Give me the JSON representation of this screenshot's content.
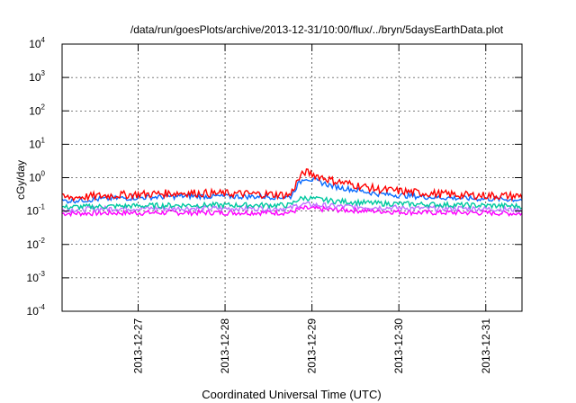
{
  "chart_data": {
    "type": "line",
    "title": "/data/run/goesPlots/archive/2013-12-31/10:00/flux/../bryn/5daysEarthData.plot",
    "xlabel": "Coordinated Universal Time (UTC)",
    "ylabel": "cGy/day",
    "yscale": "log",
    "ylim": [
      0.0001,
      10000
    ],
    "xlim": [
      "2013-12-26T03:00",
      "2013-12-31T10:00"
    ],
    "y_ticks": [
      {
        "base": "10",
        "exp": "-4",
        "value": 0.0001
      },
      {
        "base": "10",
        "exp": "-3",
        "value": 0.001
      },
      {
        "base": "10",
        "exp": "-2",
        "value": 0.01
      },
      {
        "base": "10",
        "exp": "-1",
        "value": 0.1
      },
      {
        "base": "10",
        "exp": "0",
        "value": 1
      },
      {
        "base": "10",
        "exp": "1",
        "value": 10
      },
      {
        "base": "10",
        "exp": "2",
        "value": 100
      },
      {
        "base": "10",
        "exp": "3",
        "value": 1000
      },
      {
        "base": "10",
        "exp": "4",
        "value": 10000
      }
    ],
    "x_ticks": [
      {
        "label": "2013-12-27",
        "value": "2013-12-27T00:00"
      },
      {
        "label": "2013-12-28",
        "value": "2013-12-28T00:00"
      },
      {
        "label": "2013-12-29",
        "value": "2013-12-29T00:00"
      },
      {
        "label": "2013-12-30",
        "value": "2013-12-30T00:00"
      },
      {
        "label": "2013-12-31",
        "value": "2013-12-31T00:00"
      }
    ],
    "grid": true,
    "x": [
      "2013-12-26T03:00",
      "2013-12-26T18:00",
      "2013-12-27T12:00",
      "2013-12-28T12:00",
      "2013-12-28T18:00",
      "2013-12-28T20:00",
      "2013-12-28T22:00",
      "2013-12-29T06:00",
      "2013-12-29T18:00",
      "2013-12-30T06:00",
      "2013-12-30T18:00",
      "2013-12-31T10:00"
    ],
    "series": [
      {
        "color": "#ff0000",
        "values": [
          0.25,
          0.3,
          0.35,
          0.32,
          0.3,
          0.8,
          1.5,
          0.8,
          0.45,
          0.35,
          0.3,
          0.28
        ]
      },
      {
        "color": "#0a6cff",
        "values": [
          0.2,
          0.24,
          0.28,
          0.27,
          0.26,
          0.6,
          1.0,
          0.55,
          0.33,
          0.27,
          0.24,
          0.22
        ]
      },
      {
        "color": "#00c8a0",
        "values": [
          0.13,
          0.14,
          0.15,
          0.15,
          0.15,
          0.22,
          0.25,
          0.2,
          0.17,
          0.16,
          0.15,
          0.14
        ]
      },
      {
        "color": "#c070ff",
        "values": [
          0.11,
          0.12,
          0.12,
          0.12,
          0.12,
          0.15,
          0.16,
          0.14,
          0.13,
          0.12,
          0.12,
          0.11
        ]
      },
      {
        "color": "#ff00ff",
        "values": [
          0.085,
          0.088,
          0.09,
          0.09,
          0.09,
          0.11,
          0.12,
          0.11,
          0.1,
          0.09,
          0.09,
          0.085
        ]
      }
    ]
  }
}
